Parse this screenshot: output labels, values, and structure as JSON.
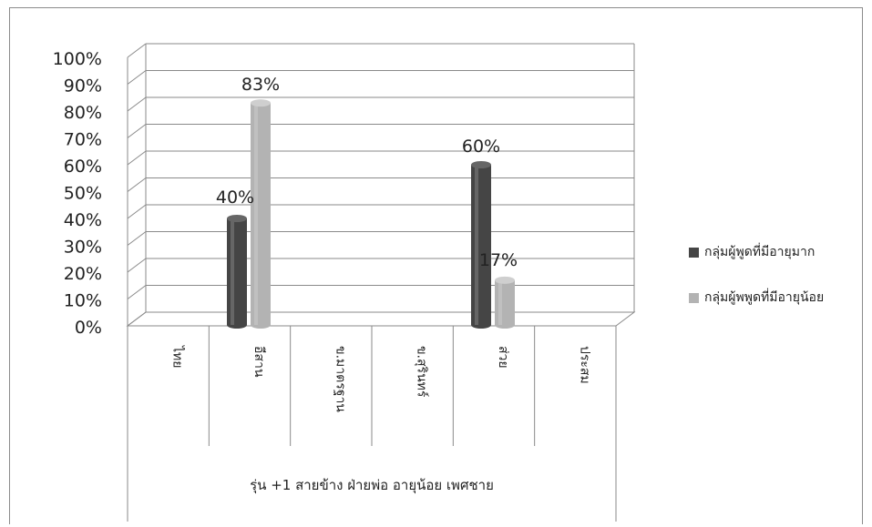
{
  "chart_data": {
    "type": "bar",
    "categories": [
      "ไทย",
      "อีสาน",
      "ข.มาตรฐาน",
      "ข.สุรินทร์",
      "ส่วย",
      "ประสม"
    ],
    "group_label": "รุ่น +1 สายข้าง ฝ่ายพ่อ อายุน้อย เพศชาย",
    "series": [
      {
        "name": "กลุ่มผู้พูดที่มีอายุมาก",
        "color": "#454545",
        "values": [
          0,
          40,
          0,
          0,
          60,
          0
        ]
      },
      {
        "name": "กลุ่มผู้พพูดที่มีอายุน้อย",
        "color": "#b3b3b3",
        "values": [
          0,
          83,
          0,
          0,
          17,
          0
        ]
      }
    ],
    "data_labels": [
      {
        "series": 0,
        "category": 1,
        "text": "40%"
      },
      {
        "series": 1,
        "category": 1,
        "text": "83%"
      },
      {
        "series": 0,
        "category": 4,
        "text": "60%"
      },
      {
        "series": 1,
        "category": 4,
        "text": "17%"
      }
    ],
    "y_ticks": [
      "0%",
      "10%",
      "20%",
      "30%",
      "40%",
      "50%",
      "60%",
      "70%",
      "80%",
      "90%",
      "100%"
    ],
    "ylim": [
      0,
      100
    ],
    "grid": true,
    "legend_position": "right"
  }
}
